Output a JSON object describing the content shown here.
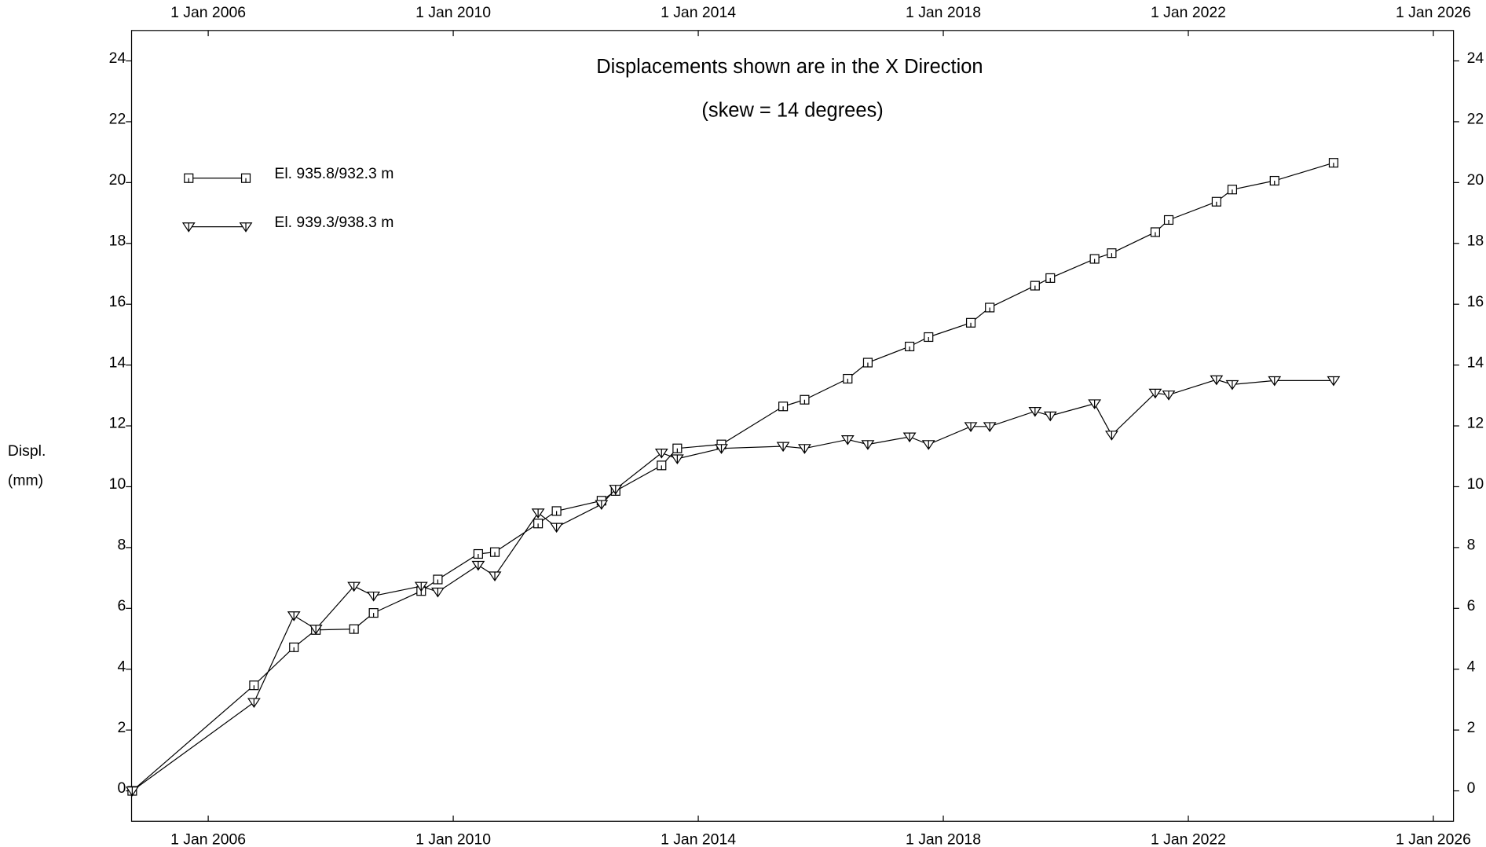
{
  "chart_data": {
    "type": "line",
    "title": "Displacements shown are in the  X Direction",
    "subtitle": "(skew = 14 degrees)",
    "y_label": [
      "Displ.",
      "(mm)"
    ],
    "x": [
      "2004-10-05",
      "2006-10-01",
      "2007-05-27",
      "2007-10-05",
      "2008-05-19",
      "2008-09-13",
      "2009-06-24",
      "2009-10-01",
      "2010-05-30",
      "2010-09-06",
      "2011-05-22",
      "2011-09-09",
      "2012-06-03",
      "2012-08-26",
      "2013-05-27",
      "2013-08-29",
      "2014-05-19",
      "2015-05-22",
      "2015-09-27",
      "2016-06-10",
      "2016-10-08",
      "2017-06-14",
      "2017-10-05",
      "2018-06-14",
      "2018-10-05",
      "2019-07-02",
      "2019-10-01",
      "2020-06-21",
      "2020-10-01",
      "2021-06-18",
      "2021-09-06",
      "2022-06-18",
      "2022-09-20",
      "2023-05-30",
      "2024-05-16"
    ],
    "series": [
      {
        "name": "El. 935.8/932.3 m",
        "color": "#000000",
        "marker": "square",
        "values": [
          0,
          3.47,
          4.72,
          5.29,
          5.32,
          5.85,
          6.57,
          6.95,
          7.79,
          7.85,
          8.79,
          9.2,
          9.54,
          9.86,
          10.7,
          11.26,
          11.39,
          12.64,
          12.86,
          13.55,
          14.08,
          14.61,
          14.92,
          15.39,
          15.89,
          16.61,
          16.86,
          17.49,
          17.68,
          18.37,
          18.77,
          19.37,
          19.77,
          20.06,
          20.65
        ]
      },
      {
        "name": "El. 939.3/938.3 m",
        "color": "#000000",
        "marker": "triangle-down",
        "values": [
          0,
          2.91,
          5.76,
          5.32,
          6.73,
          6.41,
          6.73,
          6.54,
          7.42,
          7.07,
          9.14,
          8.67,
          9.42,
          9.92,
          11.11,
          10.92,
          11.26,
          11.33,
          11.26,
          11.55,
          11.39,
          11.64,
          11.39,
          11.98,
          11.98,
          12.48,
          12.33,
          12.73,
          11.7,
          13.08,
          13.02,
          13.52,
          13.36,
          13.49,
          13.49
        ]
      }
    ],
    "xlim": [
      "2004-10-01",
      "2026-05-01"
    ],
    "xticks": [
      {
        "value": "2006-01-01",
        "label": "1 Jan 2006"
      },
      {
        "value": "2010-01-01",
        "label": "1 Jan 2010"
      },
      {
        "value": "2014-01-01",
        "label": "1 Jan 2014"
      },
      {
        "value": "2018-01-01",
        "label": "1 Jan 2018"
      },
      {
        "value": "2022-01-01",
        "label": "1 Jan 2022"
      },
      {
        "value": "2026-01-01",
        "label": "1 Jan 2026"
      }
    ],
    "ylim": [
      -1,
      25
    ],
    "yticks": [
      0,
      2,
      4,
      6,
      8,
      10,
      12,
      14,
      16,
      18,
      20,
      22,
      24
    ],
    "grid": false,
    "legend": "upper-left"
  }
}
